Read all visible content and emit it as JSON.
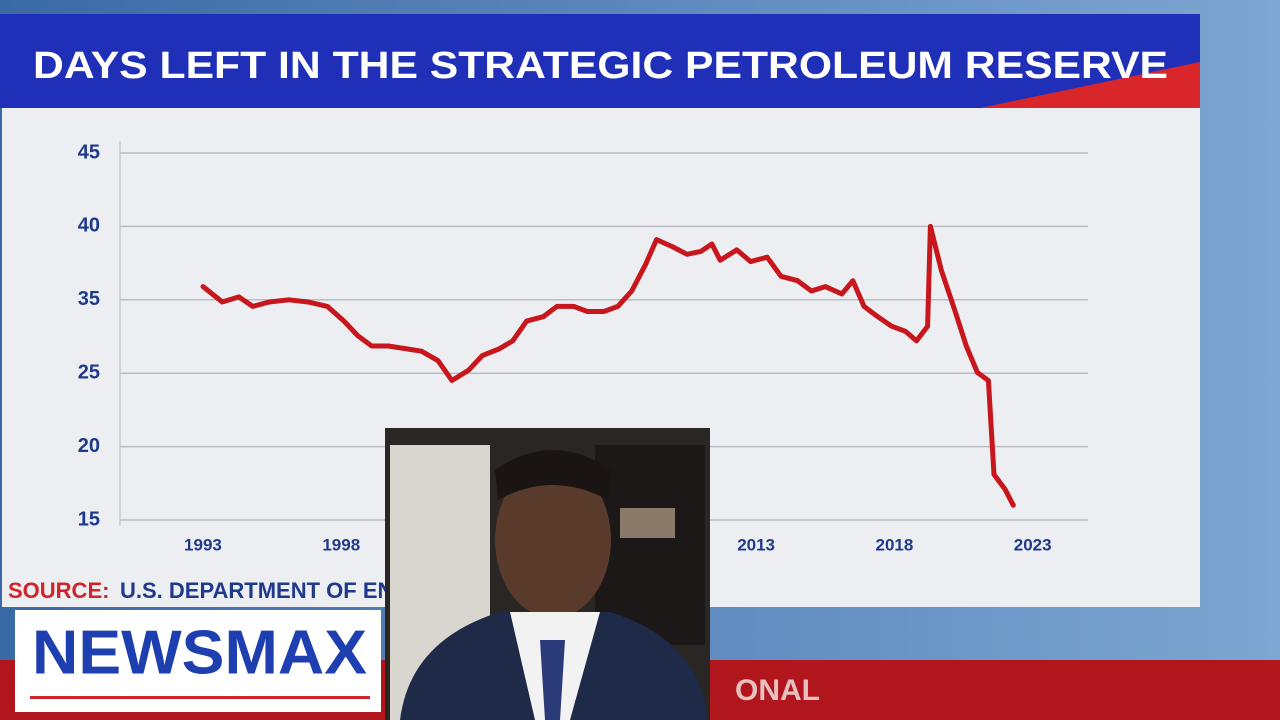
{
  "chart_data": {
    "type": "line",
    "title": "DAYS LEFT IN THE STRATEGIC PETROLEUM RESERVE",
    "x": [
      1993.0,
      1993.7,
      1994.3,
      1994.8,
      1995.4,
      1996.1,
      1996.8,
      1997.5,
      1998.1,
      1998.6,
      1999.1,
      1999.7,
      2000.4,
      2000.9,
      2001.5,
      2002.0,
      2002.6,
      2003.1,
      2003.7,
      2004.2,
      2004.7,
      2005.3,
      2005.8,
      2006.4,
      2006.9,
      2007.5,
      2008.0,
      2008.5,
      2009.0,
      2009.4,
      2010.0,
      2010.5,
      2011.0,
      2011.4,
      2011.7,
      2012.3,
      2012.8,
      2013.4,
      2013.9,
      2014.5,
      2015.0,
      2015.5,
      2016.1,
      2016.5,
      2016.9,
      2017.4,
      2017.9,
      2018.4,
      2018.8,
      2019.2,
      2019.3,
      2019.7,
      2020.2,
      2020.6,
      2021.0,
      2021.4,
      2021.6,
      2022.0,
      2022.3
    ],
    "series": [
      {
        "name": "Days left",
        "color": "#c8161d",
        "values": [
          35.9,
          34.7,
          35.2,
          34.1,
          34.7,
          35.0,
          34.7,
          34.1,
          32.1,
          30.1,
          28.7,
          28.7,
          28.3,
          28.0,
          26.7,
          24.5,
          25.4,
          27.4,
          28.3,
          29.4,
          32.1,
          32.7,
          34.1,
          34.1,
          33.4,
          33.4,
          34.1,
          35.6,
          37.4,
          39.1,
          38.6,
          38.1,
          38.3,
          38.8,
          37.7,
          38.4,
          37.6,
          37.9,
          36.6,
          36.3,
          35.6,
          35.9,
          35.4,
          36.3,
          34.1,
          32.7,
          31.4,
          30.7,
          29.4,
          31.4,
          40.0,
          37.0,
          33.4,
          28.7,
          25.1,
          24.5,
          18.1,
          17.1,
          16.0
        ]
      }
    ],
    "xlim": [
      1990,
      2025
    ],
    "xticks": [
      1993,
      1998,
      2013,
      2018,
      2023
    ],
    "ylim": [
      15,
      45
    ],
    "yticks": [
      45,
      40,
      35,
      25,
      20,
      15
    ],
    "grid": true
  },
  "source": {
    "label": "SOURCE:",
    "text": "U.S. DEPARTMENT OF ENERGY"
  },
  "logo": "NEWSMAX",
  "ticker": "ONAL"
}
